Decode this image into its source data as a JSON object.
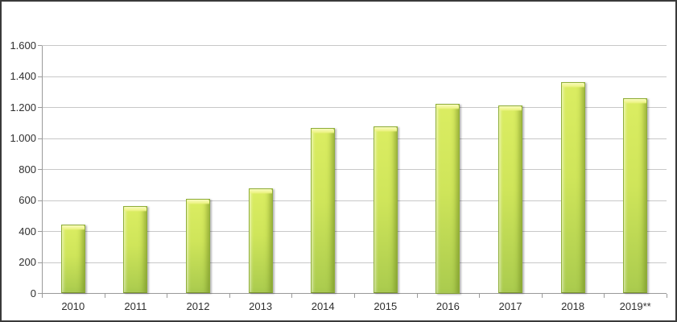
{
  "window": {
    "background_color": "#ffffff",
    "border_color": "#3a3a3a"
  },
  "chart_data": {
    "type": "bar",
    "title": "",
    "xlabel": "",
    "ylabel": "",
    "categories": [
      "2010",
      "2011",
      "2012",
      "2013",
      "2014",
      "2015",
      "2016",
      "2017",
      "2018",
      "2019**"
    ],
    "values": [
      445,
      565,
      610,
      680,
      1070,
      1080,
      1225,
      1215,
      1365,
      1260
    ],
    "ylim": [
      0,
      1600
    ],
    "ytick_interval": 200,
    "ytick_labels": [
      "0",
      "200",
      "400",
      "600",
      "800",
      "1.000",
      "1.200",
      "1.400",
      "1.600"
    ],
    "grid": "horizontal",
    "legend_position": "none",
    "colors": {
      "bar_fill_top": "#dbed62",
      "bar_fill_bottom": "#aacb4e",
      "bar_bevel_highlight": "#f2f69a",
      "bar_border": "#8fae39",
      "gridline": "#c8c8c8",
      "axis": "#9a9a9a",
      "tick_label": "#2f2f2f"
    }
  }
}
